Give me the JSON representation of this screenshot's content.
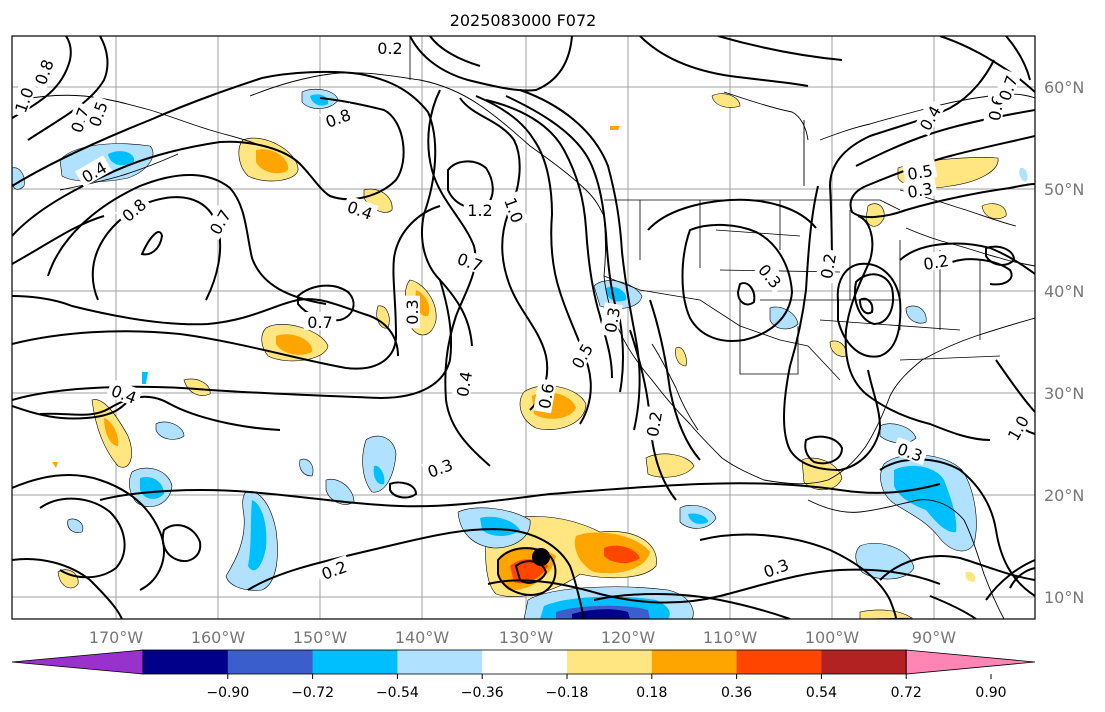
{
  "title": "2025083000 F072",
  "map": {
    "lon_labels": [
      "170°W",
      "160°W",
      "150°W",
      "140°W",
      "130°W",
      "120°W",
      "110°W",
      "100°W",
      "90°W"
    ],
    "lat_labels": [
      "60°N",
      "50°N",
      "40°N",
      "30°N",
      "20°N",
      "10°N"
    ],
    "contour_labels": [
      "0.2",
      "0.8",
      "1.0",
      "0.7",
      "0.5",
      "0.8",
      "0.4",
      "0.8",
      "0.7",
      "0.4",
      "1.2",
      "1.0",
      "0.7",
      "0.7",
      "0.3",
      "0.4",
      "0.3",
      "0.4",
      "0.6",
      "0.5",
      "0.3",
      "0.2",
      "0.2",
      "0.3",
      "0.2",
      "0.3",
      "0.3",
      "0.5",
      "0.3",
      "0.4",
      "0.6",
      "0.7",
      "0.2",
      "1.0"
    ]
  },
  "colorbar": {
    "colors": [
      "#9932cc",
      "#00008b",
      "#3a5fcd",
      "#00bfff",
      "#b0e2ff",
      "#ffffff",
      "#ffe680",
      "#ffa500",
      "#ff4500",
      "#b22222",
      "#ff86b4"
    ],
    "tick_labels": [
      "−0.90",
      "−0.72",
      "−0.54",
      "−0.36",
      "−0.18",
      "0.18",
      "0.36",
      "0.54",
      "0.72",
      "0.90"
    ]
  }
}
